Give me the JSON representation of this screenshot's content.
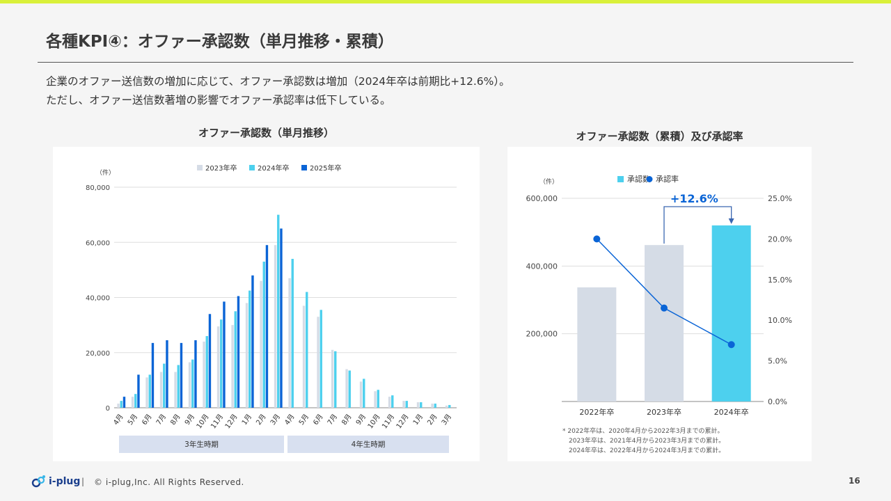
{
  "slide": {
    "title": "各種KPI④：オファー承認数（単月推移・累積）",
    "description": [
      "企業のオファー送信数の増加に応じて、オファー承認数は増加（2024年卒は前期比+12.6%）。",
      "ただし、オファー送信数著増の影響でオファー承認率は低下している。"
    ],
    "page_number": "16"
  },
  "footer": {
    "brand": "i-plug",
    "separator": "|",
    "copyright": "© i-plug,Inc. All Rights Reserved."
  },
  "colors": {
    "c2023": "#d5dce6",
    "c2024": "#4dd0ee",
    "c2025": "#0a64d6",
    "rate": "#0a64d6",
    "accent": "#d9f03a"
  },
  "chart_data": [
    {
      "type": "bar",
      "title": "オファー承認数（単月推移）",
      "unit_label": "（件）",
      "categories": [
        "4月",
        "5月",
        "6月",
        "7月",
        "8月",
        "9月",
        "10月",
        "11月",
        "12月",
        "1月",
        "2月",
        "3月",
        "4月",
        "5月",
        "6月",
        "7月",
        "8月",
        "9月",
        "10月",
        "11月",
        "12月",
        "1月",
        "2月",
        "3月"
      ],
      "series": [
        {
          "name": "2023年卒",
          "values": [
            1500,
            4000,
            11000,
            13000,
            13000,
            16500,
            24000,
            29500,
            30000,
            38000,
            46000,
            59000,
            47000,
            37000,
            33000,
            21000,
            14000,
            9500,
            6000,
            4000,
            2500,
            2000,
            1500,
            800
          ]
        },
        {
          "name": "2024年卒",
          "values": [
            2500,
            5000,
            12000,
            16000,
            15500,
            17500,
            26000,
            32000,
            35000,
            42500,
            53000,
            70000,
            54000,
            42000,
            35500,
            20500,
            13500,
            10500,
            6500,
            4500,
            2500,
            2000,
            1500,
            1000
          ]
        },
        {
          "name": "2025年卒",
          "values": [
            4000,
            12000,
            23500,
            24500,
            23500,
            24500,
            34000,
            38500,
            40500,
            48000,
            59000,
            65000,
            null,
            null,
            null,
            null,
            null,
            null,
            null,
            null,
            null,
            null,
            null,
            null
          ]
        }
      ],
      "ylim": [
        0,
        80000
      ],
      "yticks": [
        "0",
        "20,000",
        "40,000",
        "60,000",
        "80,000"
      ],
      "legend": "top-center",
      "periods": [
        "3年生時期",
        "4年生時期"
      ]
    },
    {
      "type": "bar",
      "title": "オファー承認数（累積）及び承認率",
      "unit_label": "（件）",
      "categories": [
        "2022年卒",
        "2023年卒",
        "2024年卒"
      ],
      "series": [
        {
          "name": "承認数",
          "values": [
            337000,
            462000,
            520000
          ]
        },
        {
          "name": "承認率",
          "type": "line",
          "values": [
            20.0,
            11.5,
            7.0
          ]
        }
      ],
      "ylim": [
        0,
        600000
      ],
      "y2lim": [
        0,
        25
      ],
      "yticks": [
        "200,000",
        "400,000",
        "600,000"
      ],
      "y2ticks": [
        "0.0%",
        "5.0%",
        "10.0%",
        "15.0%",
        "20.0%",
        "25.0%"
      ],
      "annotation": "+12.6%",
      "note": [
        "* 2022年卒は、2020年4月から2022年3月までの累計。",
        "2023年卒は、2021年4月から2023年3月までの累計。",
        "2024年卒は、2022年4月から2024年3月までの累計。"
      ],
      "legend": "top-center"
    }
  ]
}
